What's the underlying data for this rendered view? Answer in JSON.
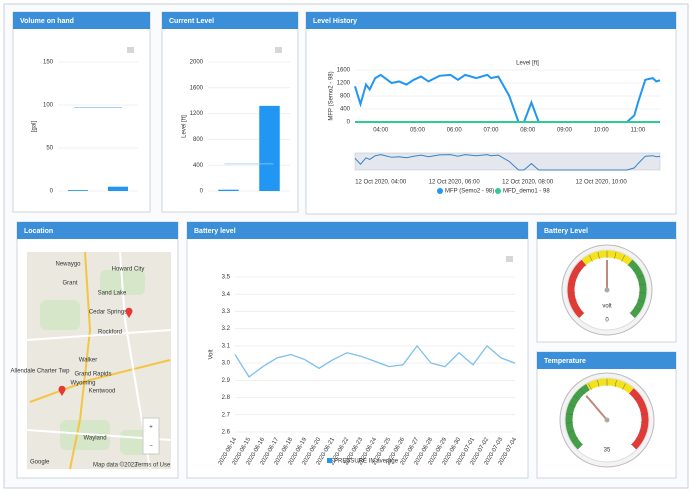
{
  "chart_data": [
    {
      "type": "bar",
      "title": "Volume on hand",
      "y_label": "[gal]",
      "categories": [
        null,
        null
      ],
      "values": [
        1,
        5
      ],
      "reference_line": 97,
      "color": "#2196f3",
      "ylim": [
        0,
        150
      ],
      "yticks": [
        0,
        50,
        100,
        150
      ],
      "grid": true
    },
    {
      "type": "bar",
      "title": "Current Level",
      "y_label": "Level [ft]",
      "categories": [
        null,
        null
      ],
      "values": [
        20,
        1320
      ],
      "reference_line": 420,
      "color": "#2196f3",
      "ylim": [
        0,
        2000
      ],
      "yticks": [
        0,
        400,
        800,
        1200,
        1600,
        2000
      ],
      "grid": true
    },
    {
      "type": "line",
      "title": "Level History",
      "subtitle": "Level [ft]",
      "y_label": "MFP (Semo2 - 98)",
      "x": [
        3.3,
        3.45,
        3.6,
        3.7,
        3.85,
        4.0,
        4.3,
        4.5,
        4.7,
        4.9,
        5.1,
        5.3,
        5.6,
        5.9,
        6.1,
        6.3,
        6.6,
        6.9,
        7.0,
        7.2,
        7.5,
        7.75,
        7.9,
        8.1,
        8.3,
        10.7,
        10.9,
        11.0,
        11.2,
        11.4,
        11.5,
        11.6
      ],
      "series": [
        {
          "name": "MFP (Semo2 - 98)",
          "color": "#2196f3",
          "values": [
            1100,
            550,
            1150,
            1000,
            1350,
            1450,
            1200,
            1250,
            1150,
            1300,
            1400,
            1250,
            1420,
            1450,
            1300,
            1450,
            1350,
            1450,
            1350,
            1400,
            800,
            0,
            0,
            600,
            0,
            0,
            200,
            600,
            1300,
            1350,
            1250,
            1280
          ]
        },
        {
          "name": "MFD_demo1 - 98",
          "color": "#2ecc8e",
          "values": [
            0,
            0,
            0,
            0,
            0,
            0,
            0,
            0,
            0,
            0,
            0,
            0,
            0,
            0,
            0,
            0,
            0,
            0,
            0,
            0,
            0,
            0,
            0,
            0,
            0,
            0,
            0,
            0,
            0,
            0,
            0,
            0
          ]
        }
      ],
      "xlim": [
        3.3,
        11.6
      ],
      "xticks": [
        {
          "value": 4,
          "label": "04:00"
        },
        {
          "value": 5,
          "label": "05:00"
        },
        {
          "value": 6,
          "label": "06:00"
        },
        {
          "value": 7,
          "label": "07:00"
        },
        {
          "value": 8,
          "label": "08:00"
        },
        {
          "value": 9,
          "label": "09:00"
        },
        {
          "value": 10,
          "label": "10:00"
        },
        {
          "value": 11,
          "label": "11:00"
        }
      ],
      "navigator_ticks": [
        {
          "value": 4,
          "label": "12 Oct 2020, 04:00"
        },
        {
          "value": 6,
          "label": "12 Oct 2020, 06:00"
        },
        {
          "value": 8,
          "label": "12 Oct 2020, 08:00"
        },
        {
          "value": 10,
          "label": "12 Oct 2020, 10:00"
        }
      ],
      "ylim": [
        0,
        1600
      ],
      "yticks": [
        0,
        400,
        800,
        1200,
        1600
      ],
      "grid": true
    },
    {
      "type": "line",
      "title": "Battery level",
      "y_label": "Volt",
      "categories": [
        "2020-06-14",
        "2020-06-15",
        "2020-06-16",
        "2020-06-17",
        "2020-06-18",
        "2020-06-19",
        "2020-06-20",
        "2020-06-21",
        "2020-06-22",
        "2020-06-23",
        "2020-06-24",
        "2020-06-25",
        "2020-06-26",
        "2020-06-27",
        "2020-06-28",
        "2020-06-29",
        "2020-06-30",
        "2020-07-01",
        "2020-07-02",
        "2020-07-03",
        "2020-07-04"
      ],
      "series": [
        {
          "name": "PRESSURE IN average",
          "color": "#7cc0ec",
          "values": [
            3.05,
            2.92,
            2.98,
            3.03,
            3.05,
            3.02,
            2.97,
            3.02,
            3.06,
            3.04,
            3.01,
            2.98,
            2.99,
            3.1,
            3.0,
            2.98,
            3.06,
            2.99,
            3.1,
            3.03,
            3.0
          ]
        }
      ],
      "ylim": [
        2.6,
        3.5
      ],
      "yticks": [
        2.6,
        2.7,
        2.8,
        2.9,
        {
          "value": 3,
          "label": "3.0"
        },
        3.1,
        3.2,
        3.3,
        3.4,
        3.5
      ],
      "grid": true
    },
    {
      "type": "gauge",
      "title": "Battery Level",
      "unit": "volt",
      "value": 0,
      "ylim": [
        -3,
        3
      ]
    },
    {
      "type": "gauge",
      "title": "Temperature",
      "value": 35,
      "ylim": [
        0,
        100
      ]
    }
  ],
  "location": {
    "title": "Location",
    "places": [
      "Newaygo",
      "Howard City",
      "Grant",
      "Sand Lake",
      "Cedar Springs",
      "Rockford",
      "Walker",
      "Allendale Charter Twp",
      "Grand Rapids",
      "Wyoming",
      "Kentwood",
      "Wayland"
    ],
    "attribution": "Map data ©2022",
    "terms": "Terms of Use",
    "logo": "Google",
    "zoom_in": "+",
    "zoom_out": "−"
  }
}
